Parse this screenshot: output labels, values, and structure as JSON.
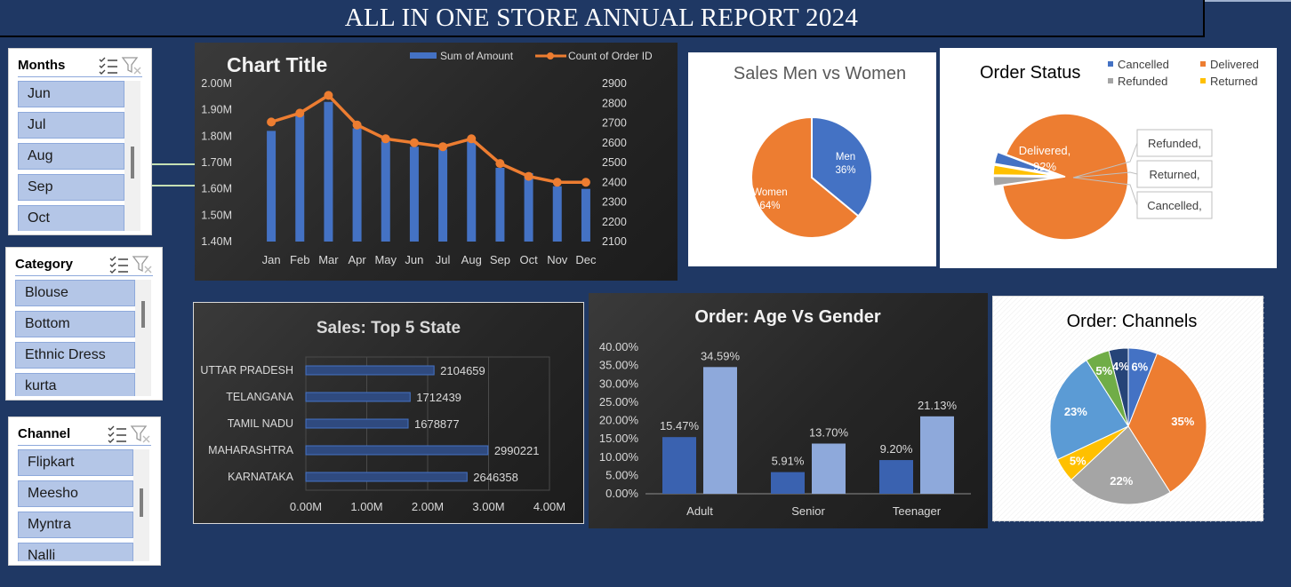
{
  "header": {
    "title": "ALL IN ONE STORE ANNUAL REPORT 2024"
  },
  "slicers": {
    "months": {
      "label": "Months",
      "items": [
        "Jun",
        "Jul",
        "Aug",
        "Sep",
        "Oct"
      ]
    },
    "category": {
      "label": "Category",
      "items": [
        "Blouse",
        "Bottom",
        "Ethnic Dress",
        "kurta"
      ]
    },
    "channel": {
      "label": "Channel",
      "items": [
        "Flipkart",
        "Meesho",
        "Myntra",
        "Nalli"
      ]
    }
  },
  "icons": [
    "multi-select-icon",
    "clear-filter-icon"
  ],
  "colors": {
    "background": "#1f3864",
    "blue": "#4472c4",
    "orange": "#ed7d31",
    "gray": "#a5a5a5",
    "yellow": "#ffc000",
    "light_blue": "#5b9bd5",
    "green": "#70ad47",
    "slicer_item": "#b4c6e7"
  },
  "chart_data": [
    {
      "type": "bar",
      "title": "Chart Title",
      "categories": [
        "Jan",
        "Feb",
        "Mar",
        "Apr",
        "May",
        "Jun",
        "Jul",
        "Aug",
        "Sep",
        "Oct",
        "Nov",
        "Dec"
      ],
      "series": [
        {
          "name": "Sum of Amount",
          "type": "bar",
          "axis": "left",
          "values": [
            1.82,
            1.88,
            1.93,
            1.83,
            1.78,
            1.76,
            1.75,
            1.78,
            1.68,
            1.66,
            1.61,
            1.6
          ]
        },
        {
          "name": "Count of Order ID",
          "type": "line",
          "axis": "right",
          "values": [
            2705,
            2750,
            2840,
            2690,
            2620,
            2600,
            2580,
            2620,
            2495,
            2430,
            2400,
            2400
          ]
        }
      ],
      "left_ticks": [
        "2.00M",
        "1.90M",
        "1.80M",
        "1.70M",
        "1.60M",
        "1.50M",
        "1.40M"
      ],
      "ylim_left": [
        1.4,
        2.0
      ],
      "right_ticks": [
        "2900",
        "2800",
        "2700",
        "2600",
        "2500",
        "2400",
        "2300",
        "2200",
        "2100"
      ],
      "ylim_right": [
        2100,
        2900
      ],
      "legend": "top-right"
    },
    {
      "type": "pie",
      "title": "Sales Men vs Women",
      "slices": [
        {
          "label": "Men",
          "value": 36,
          "pct_label": "36%"
        },
        {
          "label": "Women",
          "value": 64,
          "pct_label": "64%"
        }
      ]
    },
    {
      "type": "pie",
      "title": "Order Status",
      "legend": [
        "Cancelled",
        "Delivered",
        "Refunded",
        "Returned"
      ],
      "legend_position": "top-right",
      "slices": [
        {
          "label": "Delivered",
          "value": 92,
          "pct_label": "Delivered,\n92%"
        },
        {
          "label": "Refunded",
          "value": 2.5,
          "callout": "Refunded,"
        },
        {
          "label": "Returned",
          "value": 2.5,
          "callout": "Returned,"
        },
        {
          "label": "Cancelled",
          "value": 3,
          "callout": "Cancelled,"
        }
      ]
    },
    {
      "type": "bar",
      "orientation": "horizontal",
      "title": "Sales: Top 5 State",
      "categories": [
        "UTTAR PRADESH",
        "TELANGANA",
        "TAMIL NADU",
        "MAHARASHTRA",
        "KARNATAKA"
      ],
      "values": [
        2104659,
        1712439,
        1678877,
        2990221,
        2646358
      ],
      "x_ticks": [
        "0.00M",
        "1.00M",
        "2.00M",
        "3.00M",
        "4.00M"
      ],
      "xlim": [
        0,
        4000000
      ]
    },
    {
      "type": "bar",
      "title": "Order: Age Vs Gender",
      "categories": [
        "Adult",
        "Senior",
        "Teenager"
      ],
      "series": [
        {
          "values": [
            15.47,
            5.91,
            9.2
          ],
          "labels": [
            "15.47%",
            "5.91%",
            "9.20%"
          ]
        },
        {
          "values": [
            34.59,
            13.7,
            21.13
          ],
          "labels": [
            "34.59%",
            "13.70%",
            "21.13%"
          ]
        }
      ],
      "y_ticks": [
        "40.00%",
        "35.00%",
        "30.00%",
        "25.00%",
        "20.00%",
        "15.00%",
        "10.00%",
        "5.00%",
        "0.00%"
      ],
      "ylim": [
        0,
        40
      ]
    },
    {
      "type": "pie",
      "title": "Order: Channels",
      "slices": [
        {
          "value": 6,
          "label": "6%",
          "color": "#4472c4"
        },
        {
          "value": 35,
          "label": "35%",
          "color": "#ed7d31"
        },
        {
          "value": 22,
          "label": "22%",
          "color": "#a5a5a5"
        },
        {
          "value": 5,
          "label": "5%",
          "color": "#ffc000"
        },
        {
          "value": 23,
          "label": "23%",
          "color": "#5b9bd5"
        },
        {
          "value": 5,
          "label": "5%",
          "color": "#70ad47"
        },
        {
          "value": 4,
          "label": "4%",
          "color": "#264478"
        }
      ]
    }
  ]
}
